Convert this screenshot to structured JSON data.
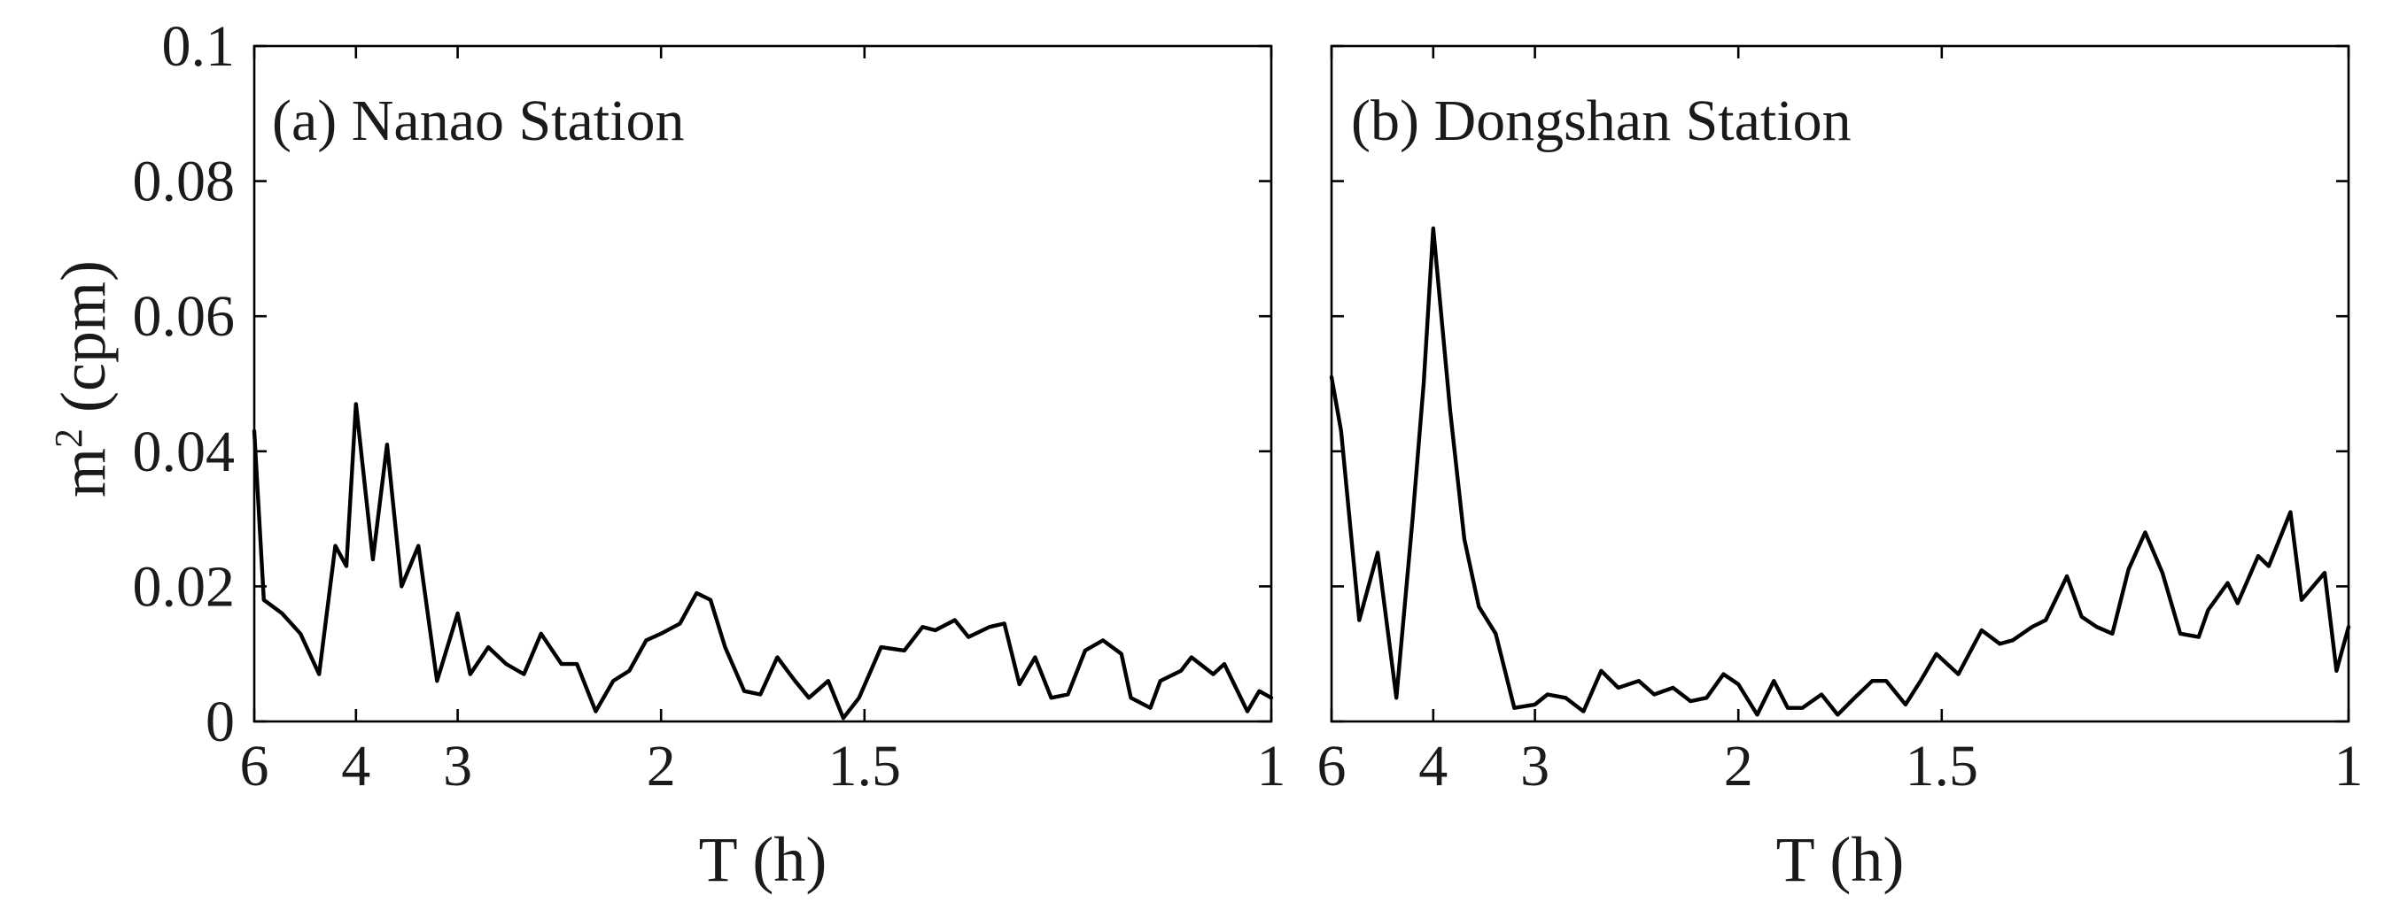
{
  "chart_data": [
    {
      "type": "line",
      "title": "(a) Nanao Station",
      "xlabel": "T (h)",
      "ylabel_main": "m",
      "ylabel_sup": "2",
      "ylabel_unit": " (cpm)",
      "xscale": "reciprocal",
      "xlim": [
        6,
        1
      ],
      "ylim": [
        0,
        0.1
      ],
      "grid": false,
      "x_ticks": [
        6,
        4,
        3,
        2,
        1.5,
        1
      ],
      "y_ticks": [
        0,
        0.02,
        0.04,
        0.06,
        0.08,
        0.1
      ],
      "y_tick_labels": [
        "0",
        "0.02",
        "0.04",
        "0.06",
        "0.08",
        "0.1"
      ],
      "series": [
        {
          "x": [
            6,
            5.73,
            5.28,
            4.89,
            4.55,
            4.29,
            4.13,
            4,
            3.79,
            3.63,
            3.48,
            3.32,
            3.16,
            3,
            2.91,
            2.79,
            2.68,
            2.58,
            2.49,
            2.39,
            2.32,
            2.24,
            2.17,
            2.11,
            2.05,
            2,
            1.94,
            1.89,
            1.85,
            1.81,
            1.76,
            1.72,
            1.68,
            1.64,
            1.61,
            1.57,
            1.54,
            1.51,
            1.47,
            1.43,
            1.4,
            1.38,
            1.35,
            1.33,
            1.3,
            1.28,
            1.26,
            1.24,
            1.22,
            1.2,
            1.18,
            1.16,
            1.14,
            1.13,
            1.11,
            1.1,
            1.08,
            1.07,
            1.05,
            1.04,
            1.02,
            1.01,
            1
          ],
          "values": [
            0.043,
            0.018,
            0.016,
            0.013,
            0.007,
            0.026,
            0.023,
            0.047,
            0.024,
            0.041,
            0.02,
            0.026,
            0.006,
            0.016,
            0.007,
            0.011,
            0.0085,
            0.007,
            0.013,
            0.0085,
            0.0085,
            0.0015,
            0.006,
            0.0075,
            0.012,
            0.013,
            0.0145,
            0.019,
            0.018,
            0.011,
            0.0045,
            0.004,
            0.0095,
            0.006,
            0.0035,
            0.006,
            0.0005,
            0.0035,
            0.011,
            0.0105,
            0.014,
            0.0135,
            0.015,
            0.0125,
            0.014,
            0.0145,
            0.0055,
            0.0095,
            0.0035,
            0.004,
            0.0105,
            0.012,
            0.01,
            0.0035,
            0.002,
            0.006,
            0.0075,
            0.0095,
            0.007,
            0.0085,
            0.0015,
            0.0045,
            0.0035
          ]
        }
      ]
    },
    {
      "type": "line",
      "title": "(b) Dongshan Station",
      "xlabel": "T (h)",
      "xscale": "reciprocal",
      "xlim": [
        6,
        1
      ],
      "ylim": [
        0,
        0.1
      ],
      "grid": false,
      "x_ticks": [
        6,
        4,
        3,
        2,
        1.5,
        1
      ],
      "y_ticks": [
        0,
        0.02,
        0.04,
        0.06,
        0.08,
        0.1
      ],
      "series": [
        {
          "x": [
            6,
            5.73,
            5.28,
            4.89,
            4.55,
            4.29,
            4.13,
            4,
            3.79,
            3.63,
            3.48,
            3.32,
            3.16,
            3,
            2.91,
            2.79,
            2.68,
            2.58,
            2.49,
            2.39,
            2.32,
            2.24,
            2.17,
            2.11,
            2.05,
            2,
            1.94,
            1.89,
            1.85,
            1.81,
            1.76,
            1.72,
            1.68,
            1.64,
            1.61,
            1.57,
            1.54,
            1.51,
            1.47,
            1.43,
            1.4,
            1.38,
            1.35,
            1.33,
            1.3,
            1.28,
            1.26,
            1.24,
            1.22,
            1.2,
            1.18,
            1.16,
            1.14,
            1.13,
            1.11,
            1.1,
            1.08,
            1.07,
            1.05,
            1.04,
            1.02,
            1.01,
            1
          ],
          "values": [
            0.051,
            0.043,
            0.015,
            0.025,
            0.0035,
            0.03,
            0.05,
            0.073,
            0.046,
            0.027,
            0.017,
            0.013,
            0.002,
            0.0025,
            0.004,
            0.0035,
            0.0015,
            0.0075,
            0.005,
            0.006,
            0.004,
            0.005,
            0.003,
            0.0035,
            0.007,
            0.0055,
            0.001,
            0.006,
            0.002,
            0.002,
            0.004,
            0.001,
            0.0035,
            0.006,
            0.006,
            0.0025,
            0.006,
            0.01,
            0.007,
            0.0135,
            0.0115,
            0.012,
            0.014,
            0.015,
            0.0215,
            0.0155,
            0.014,
            0.013,
            0.0225,
            0.028,
            0.022,
            0.013,
            0.0125,
            0.0165,
            0.0205,
            0.0175,
            0.0245,
            0.023,
            0.031,
            0.018,
            0.022,
            0.0075,
            0.014
          ]
        }
      ]
    }
  ]
}
